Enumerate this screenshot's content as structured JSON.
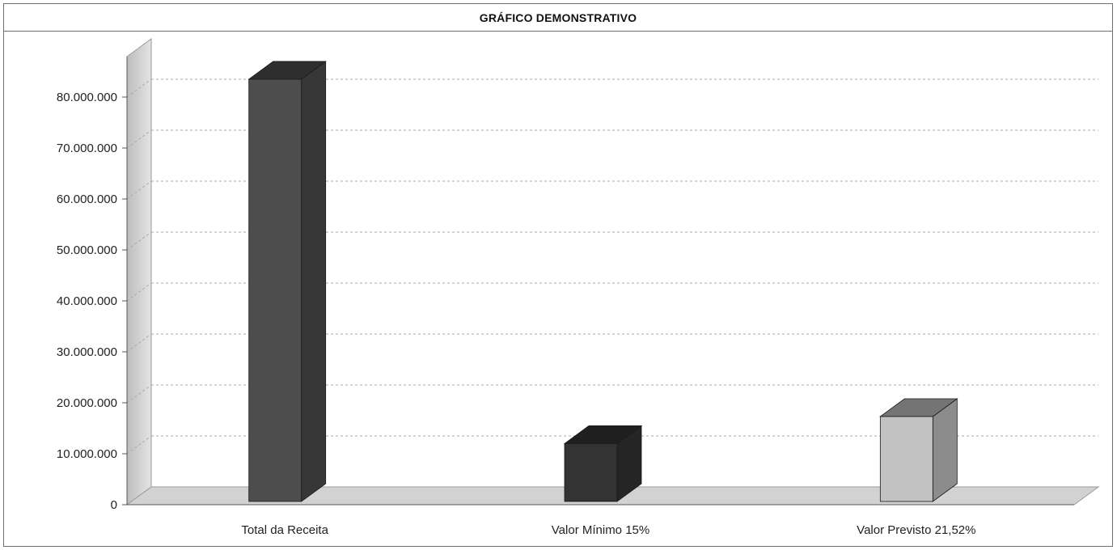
{
  "chart_data": {
    "type": "bar",
    "title": "GRÁFICO DEMONSTRATIVO",
    "categories": [
      "Total da Receita",
      "Valor Mínimo 15%",
      "Valor Previsto 21,52%"
    ],
    "values": [
      83500000,
      12000000,
      17300000
    ],
    "ylim": [
      0,
      80000000
    ],
    "yticks": [
      0,
      10000000,
      20000000,
      30000000,
      40000000,
      50000000,
      60000000,
      70000000,
      80000000
    ],
    "ytick_labels": [
      "0",
      "10.000.000",
      "20.000.000",
      "30.000.000",
      "40.000.000",
      "50.000.000",
      "60.000.000",
      "70.000.000",
      "80.000.000"
    ],
    "colors": [
      "#4d4d4d",
      "#333333",
      "#c2c2c2"
    ],
    "grid": true,
    "style": "3d-column"
  }
}
